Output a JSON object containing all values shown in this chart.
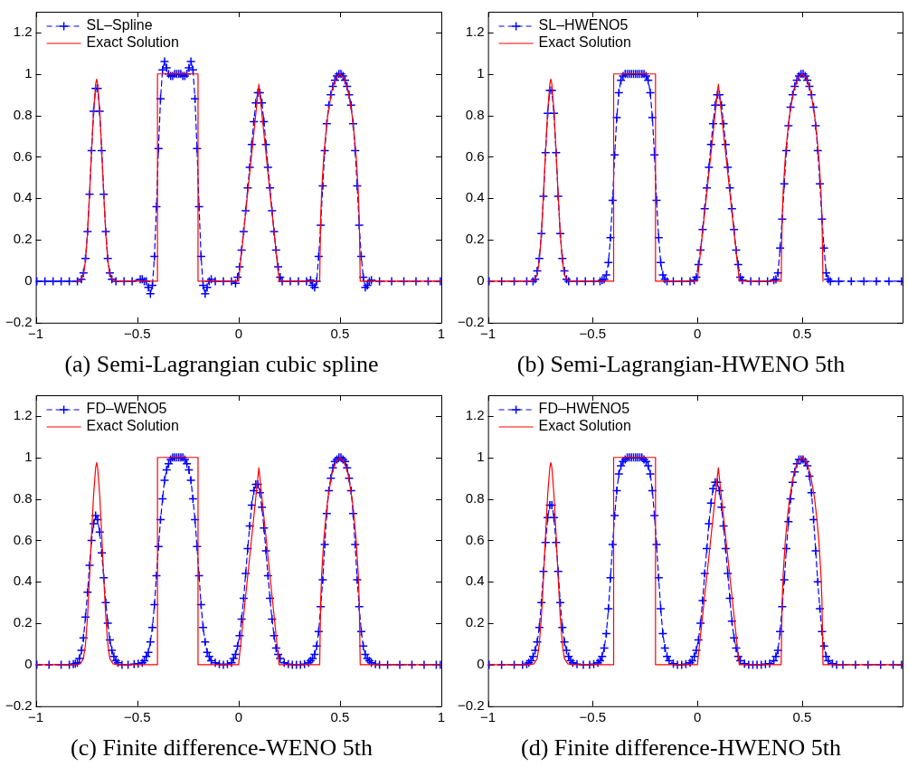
{
  "chart_data": [
    {
      "type": "line",
      "title": "(a) Semi-Lagrangian cubic spline",
      "xlim": [
        -1,
        1
      ],
      "xticks": [
        -1,
        -0.5,
        0,
        0.5,
        1
      ],
      "ylim": [
        -0.2,
        1.3
      ],
      "yticks": [
        -0.2,
        0,
        0.2,
        0.4,
        0.6,
        0.8,
        1,
        1.2
      ],
      "grid": false,
      "legend": "top left",
      "series": [
        {
          "name": "SL–Spline",
          "color": "#0000ff",
          "marker": "cross",
          "line_style": "dashed",
          "x": [
            -0.995,
            -0.955,
            -0.915,
            -0.875,
            -0.835,
            -0.795,
            -0.775,
            -0.765,
            -0.755,
            -0.745,
            -0.735,
            -0.725,
            -0.715,
            -0.705,
            -0.695,
            -0.685,
            -0.675,
            -0.665,
            -0.655,
            -0.645,
            -0.635,
            -0.625,
            -0.605,
            -0.565,
            -0.525,
            -0.485,
            -0.475,
            -0.465,
            -0.455,
            -0.445,
            -0.435,
            -0.425,
            -0.415,
            -0.405,
            -0.395,
            -0.385,
            -0.375,
            -0.365,
            -0.355,
            -0.345,
            -0.335,
            -0.325,
            -0.315,
            -0.305,
            -0.295,
            -0.285,
            -0.275,
            -0.265,
            -0.255,
            -0.245,
            -0.235,
            -0.225,
            -0.215,
            -0.205,
            -0.195,
            -0.185,
            -0.175,
            -0.165,
            -0.155,
            -0.145,
            -0.135,
            -0.115,
            -0.075,
            -0.035,
            -0.015,
            -0.005,
            0.005,
            0.015,
            0.025,
            0.035,
            0.045,
            0.055,
            0.065,
            0.075,
            0.085,
            0.095,
            0.105,
            0.115,
            0.125,
            0.135,
            0.145,
            0.155,
            0.165,
            0.175,
            0.185,
            0.195,
            0.205,
            0.215,
            0.255,
            0.295,
            0.335,
            0.355,
            0.365,
            0.375,
            0.385,
            0.395,
            0.405,
            0.415,
            0.425,
            0.435,
            0.445,
            0.455,
            0.465,
            0.475,
            0.485,
            0.495,
            0.505,
            0.515,
            0.525,
            0.535,
            0.545,
            0.555,
            0.565,
            0.575,
            0.585,
            0.595,
            0.605,
            0.615,
            0.625,
            0.635,
            0.645,
            0.655,
            0.695,
            0.755,
            0.815,
            0.875,
            0.935,
            0.995
          ],
          "values": [
            0,
            0,
            0,
            0,
            0,
            0,
            0.01,
            0.04,
            0.11,
            0.24,
            0.42,
            0.63,
            0.82,
            0.93,
            0.93,
            0.82,
            0.63,
            0.42,
            0.24,
            0.11,
            0.04,
            0.01,
            0,
            0,
            0,
            0.01,
            0.01,
            0,
            0,
            -0.03,
            -0.06,
            -0.02,
            0.12,
            0.36,
            0.64,
            0.88,
            1.02,
            1.06,
            1.03,
            1,
            0.99,
            0.99,
            1,
            1,
            1,
            1,
            0.99,
            0.99,
            1,
            1.03,
            1.06,
            1.02,
            0.88,
            0.64,
            0.36,
            0.12,
            -0.02,
            -0.06,
            -0.03,
            0,
            0.01,
            0,
            0,
            0,
            -0.01,
            0.02,
            0.07,
            0.15,
            0.24,
            0.34,
            0.45,
            0.55,
            0.66,
            0.77,
            0.86,
            0.91,
            0.91,
            0.86,
            0.77,
            0.66,
            0.55,
            0.45,
            0.34,
            0.24,
            0.15,
            0.07,
            0.02,
            0,
            0,
            0,
            0,
            0.005,
            -0.02,
            -0.03,
            0,
            0.12,
            0.27,
            0.46,
            0.63,
            0.76,
            0.85,
            0.9,
            0.94,
            0.97,
            0.99,
            1,
            1,
            0.99,
            0.97,
            0.94,
            0.9,
            0.85,
            0.76,
            0.63,
            0.46,
            0.27,
            0.12,
            0.02,
            -0.03,
            -0.02,
            0,
            0.005,
            0,
            0,
            0,
            0,
            0,
            0
          ]
        },
        {
          "name": "Exact Solution",
          "color": "#ff0000",
          "marker": "none",
          "line_style": "solid",
          "x": [
            -0.8,
            -0.78,
            -0.765,
            -0.755,
            -0.745,
            -0.735,
            -0.725,
            -0.715,
            -0.705,
            -0.7,
            -0.695,
            -0.685,
            -0.675,
            -0.665,
            -0.655,
            -0.645,
            -0.635,
            -0.62,
            -0.6,
            -0.4,
            -0.4,
            -0.2,
            -0.2,
            0,
            0.1,
            0.2,
            0.4,
            0.405,
            0.41,
            0.42,
            0.43,
            0.44,
            0.46,
            0.48,
            0.5,
            0.52,
            0.54,
            0.56,
            0.57,
            0.58,
            0.59,
            0.595,
            0.6,
            1
          ],
          "values": [
            0,
            0.005,
            0.03,
            0.1,
            0.23,
            0.42,
            0.63,
            0.82,
            0.95,
            0.975,
            0.95,
            0.82,
            0.63,
            0.42,
            0.23,
            0.1,
            0.03,
            0.005,
            0,
            0,
            1,
            1,
            0,
            0,
            0.95,
            0,
            0,
            0.31,
            0.44,
            0.6,
            0.71,
            0.8,
            0.92,
            0.98,
            1,
            0.98,
            0.92,
            0.8,
            0.71,
            0.6,
            0.44,
            0.31,
            0,
            0
          ]
        }
      ]
    },
    {
      "type": "line",
      "title": "(b) Semi-Lagrangian-HWENO 5th",
      "xlim": [
        -1,
        0.98
      ],
      "xticks": [
        -1,
        -0.5,
        0,
        0.5
      ],
      "ylim": [
        -0.2,
        1.3
      ],
      "yticks": [
        -0.2,
        0,
        0.2,
        0.4,
        0.6,
        0.8,
        1,
        1.2
      ],
      "grid": false,
      "legend": "top left",
      "series": [
        {
          "name": "SL–HWENO5",
          "color": "#0000ff",
          "marker": "cross",
          "line_style": "dashed",
          "x": [
            -0.995,
            -0.935,
            -0.875,
            -0.815,
            -0.785,
            -0.775,
            -0.765,
            -0.755,
            -0.745,
            -0.735,
            -0.725,
            -0.715,
            -0.705,
            -0.695,
            -0.685,
            -0.675,
            -0.665,
            -0.655,
            -0.645,
            -0.635,
            -0.625,
            -0.615,
            -0.575,
            -0.535,
            -0.495,
            -0.465,
            -0.455,
            -0.445,
            -0.435,
            -0.425,
            -0.415,
            -0.405,
            -0.395,
            -0.385,
            -0.375,
            -0.365,
            -0.355,
            -0.345,
            -0.335,
            -0.325,
            -0.315,
            -0.305,
            -0.295,
            -0.285,
            -0.275,
            -0.265,
            -0.255,
            -0.245,
            -0.235,
            -0.225,
            -0.215,
            -0.205,
            -0.195,
            -0.185,
            -0.175,
            -0.165,
            -0.155,
            -0.145,
            -0.115,
            -0.075,
            -0.035,
            -0.015,
            -0.005,
            0.005,
            0.015,
            0.025,
            0.035,
            0.045,
            0.055,
            0.065,
            0.075,
            0.085,
            0.095,
            0.105,
            0.115,
            0.125,
            0.135,
            0.145,
            0.155,
            0.165,
            0.175,
            0.185,
            0.195,
            0.205,
            0.215,
            0.255,
            0.295,
            0.335,
            0.365,
            0.375,
            0.385,
            0.395,
            0.405,
            0.415,
            0.425,
            0.435,
            0.445,
            0.455,
            0.465,
            0.475,
            0.485,
            0.495,
            0.505,
            0.515,
            0.525,
            0.535,
            0.545,
            0.555,
            0.565,
            0.575,
            0.585,
            0.595,
            0.605,
            0.615,
            0.625,
            0.635,
            0.675,
            0.735,
            0.795,
            0.855,
            0.915,
            0.975
          ],
          "values": [
            0,
            0,
            0,
            0,
            0,
            0.01,
            0.05,
            0.11,
            0.23,
            0.41,
            0.62,
            0.81,
            0.92,
            0.92,
            0.81,
            0.62,
            0.41,
            0.23,
            0.11,
            0.05,
            0.01,
            0,
            0,
            0,
            0,
            0,
            0.005,
            0.01,
            0.03,
            0.09,
            0.21,
            0.39,
            0.61,
            0.79,
            0.91,
            0.97,
            0.99,
            1,
            1,
            1,
            1,
            1,
            1,
            1,
            1,
            1,
            1,
            0.99,
            0.97,
            0.91,
            0.79,
            0.61,
            0.39,
            0.21,
            0.09,
            0.03,
            0.01,
            0,
            0,
            0,
            0,
            0.005,
            0.02,
            0.08,
            0.15,
            0.25,
            0.35,
            0.45,
            0.55,
            0.66,
            0.76,
            0.85,
            0.9,
            0.9,
            0.85,
            0.76,
            0.66,
            0.55,
            0.45,
            0.35,
            0.25,
            0.15,
            0.08,
            0.02,
            0.005,
            0,
            0,
            0,
            0.005,
            0.01,
            0.04,
            0.16,
            0.3,
            0.47,
            0.63,
            0.75,
            0.84,
            0.9,
            0.94,
            0.97,
            0.99,
            1,
            1,
            0.99,
            0.97,
            0.94,
            0.9,
            0.84,
            0.75,
            0.63,
            0.47,
            0.3,
            0.16,
            0.04,
            0.01,
            0,
            0,
            0,
            0,
            0,
            0,
            0
          ]
        },
        {
          "name": "Exact Solution",
          "color": "#ff0000",
          "marker": "none",
          "line_style": "solid",
          "x": [
            -1,
            -0.8,
            -0.78,
            -0.765,
            -0.755,
            -0.745,
            -0.735,
            -0.725,
            -0.715,
            -0.705,
            -0.7,
            -0.695,
            -0.685,
            -0.675,
            -0.665,
            -0.655,
            -0.645,
            -0.635,
            -0.62,
            -0.6,
            -0.4,
            -0.4,
            -0.2,
            -0.2,
            0,
            0.1,
            0.2,
            0.4,
            0.405,
            0.41,
            0.42,
            0.43,
            0.44,
            0.46,
            0.48,
            0.5,
            0.52,
            0.54,
            0.56,
            0.57,
            0.58,
            0.59,
            0.595,
            0.6
          ],
          "values": [
            0,
            0,
            0.005,
            0.03,
            0.1,
            0.23,
            0.42,
            0.63,
            0.82,
            0.95,
            0.975,
            0.95,
            0.82,
            0.63,
            0.42,
            0.23,
            0.1,
            0.03,
            0.005,
            0,
            0,
            1,
            1,
            0,
            0,
            0.95,
            0,
            0,
            0.31,
            0.44,
            0.6,
            0.71,
            0.8,
            0.92,
            0.98,
            1,
            0.98,
            0.92,
            0.8,
            0.71,
            0.6,
            0.44,
            0.31,
            0
          ]
        }
      ]
    },
    {
      "type": "line",
      "title": "(c) Finite difference-WENO 5th",
      "xlim": [
        -1,
        1
      ],
      "xticks": [
        -1,
        -0.5,
        0,
        0.5,
        1
      ],
      "ylim": [
        -0.2,
        1.3
      ],
      "yticks": [
        -0.2,
        0,
        0.2,
        0.4,
        0.6,
        0.8,
        1,
        1.2
      ],
      "grid": false,
      "legend": "top left",
      "series": [
        {
          "name": "FD–WENO5",
          "color": "#0000ff",
          "marker": "cross",
          "line_style": "dashed",
          "x": [
            -0.995,
            -0.935,
            -0.875,
            -0.835,
            -0.815,
            -0.805,
            -0.795,
            -0.785,
            -0.775,
            -0.765,
            -0.755,
            -0.745,
            -0.735,
            -0.725,
            -0.715,
            -0.705,
            -0.695,
            -0.685,
            -0.675,
            -0.665,
            -0.655,
            -0.645,
            -0.635,
            -0.625,
            -0.615,
            -0.605,
            -0.595,
            -0.575,
            -0.545,
            -0.515,
            -0.495,
            -0.475,
            -0.465,
            -0.455,
            -0.445,
            -0.435,
            -0.425,
            -0.415,
            -0.405,
            -0.395,
            -0.385,
            -0.375,
            -0.365,
            -0.355,
            -0.345,
            -0.335,
            -0.325,
            -0.315,
            -0.305,
            -0.295,
            -0.285,
            -0.275,
            -0.265,
            -0.255,
            -0.245,
            -0.235,
            -0.225,
            -0.215,
            -0.205,
            -0.195,
            -0.185,
            -0.175,
            -0.165,
            -0.155,
            -0.145,
            -0.135,
            -0.115,
            -0.095,
            -0.075,
            -0.055,
            -0.035,
            -0.025,
            -0.015,
            -0.005,
            0.005,
            0.015,
            0.025,
            0.035,
            0.045,
            0.055,
            0.065,
            0.075,
            0.085,
            0.095,
            0.105,
            0.115,
            0.125,
            0.135,
            0.145,
            0.155,
            0.165,
            0.175,
            0.185,
            0.195,
            0.205,
            0.225,
            0.245,
            0.265,
            0.285,
            0.305,
            0.325,
            0.345,
            0.355,
            0.365,
            0.375,
            0.385,
            0.395,
            0.405,
            0.415,
            0.425,
            0.435,
            0.445,
            0.455,
            0.465,
            0.475,
            0.485,
            0.495,
            0.505,
            0.515,
            0.525,
            0.535,
            0.545,
            0.555,
            0.565,
            0.575,
            0.585,
            0.595,
            0.605,
            0.615,
            0.625,
            0.635,
            0.645,
            0.655,
            0.675,
            0.695,
            0.735,
            0.795,
            0.855,
            0.915,
            0.975,
            0.995
          ],
          "values": [
            0,
            0,
            0,
            0,
            0.003,
            0.005,
            0.01,
            0.03,
            0.07,
            0.13,
            0.23,
            0.35,
            0.48,
            0.6,
            0.68,
            0.72,
            0.7,
            0.64,
            0.54,
            0.42,
            0.3,
            0.2,
            0.12,
            0.07,
            0.04,
            0.02,
            0.01,
            0,
            0,
            0.003,
            0.005,
            0.01,
            0.02,
            0.04,
            0.06,
            0.11,
            0.18,
            0.29,
            0.43,
            0.57,
            0.7,
            0.8,
            0.89,
            0.94,
            0.97,
            0.99,
            1,
            1,
            1,
            1,
            1,
            1,
            0.99,
            0.97,
            0.94,
            0.89,
            0.8,
            0.7,
            0.57,
            0.43,
            0.29,
            0.18,
            0.11,
            0.06,
            0.04,
            0.02,
            0.01,
            0.003,
            0,
            0.003,
            0.01,
            0.03,
            0.05,
            0.09,
            0.14,
            0.22,
            0.32,
            0.44,
            0.56,
            0.67,
            0.77,
            0.84,
            0.87,
            0.87,
            0.83,
            0.76,
            0.66,
            0.55,
            0.43,
            0.32,
            0.22,
            0.14,
            0.08,
            0.05,
            0.03,
            0.01,
            0.003,
            0,
            0,
            0,
            0.003,
            0.01,
            0.02,
            0.03,
            0.05,
            0.09,
            0.16,
            0.28,
            0.41,
            0.58,
            0.73,
            0.84,
            0.9,
            0.95,
            0.98,
            0.99,
            1,
            1,
            0.99,
            0.98,
            0.95,
            0.9,
            0.84,
            0.73,
            0.58,
            0.41,
            0.28,
            0.16,
            0.09,
            0.05,
            0.03,
            0.02,
            0.01,
            0.003,
            0,
            0,
            0,
            0,
            0,
            0,
            0
          ]
        },
        {
          "name": "Exact Solution",
          "color": "#ff0000",
          "marker": "none",
          "line_style": "solid",
          "x": [
            -1,
            -0.8,
            -0.78,
            -0.765,
            -0.755,
            -0.745,
            -0.735,
            -0.725,
            -0.715,
            -0.705,
            -0.7,
            -0.695,
            -0.685,
            -0.675,
            -0.665,
            -0.655,
            -0.645,
            -0.635,
            -0.62,
            -0.6,
            -0.4,
            -0.4,
            -0.2,
            -0.2,
            0,
            0.1,
            0.2,
            0.4,
            0.405,
            0.41,
            0.42,
            0.43,
            0.44,
            0.46,
            0.48,
            0.5,
            0.52,
            0.54,
            0.56,
            0.57,
            0.58,
            0.59,
            0.595,
            0.6,
            1
          ],
          "values": [
            0,
            0,
            0.005,
            0.03,
            0.1,
            0.23,
            0.42,
            0.63,
            0.82,
            0.95,
            0.975,
            0.95,
            0.82,
            0.63,
            0.42,
            0.23,
            0.1,
            0.03,
            0.005,
            0,
            0,
            1,
            1,
            0,
            0,
            0.95,
            0,
            0,
            0.31,
            0.44,
            0.6,
            0.71,
            0.8,
            0.92,
            0.98,
            1,
            0.98,
            0.92,
            0.8,
            0.71,
            0.6,
            0.44,
            0.31,
            0,
            0
          ]
        }
      ]
    },
    {
      "type": "line",
      "title": "(d) Finite difference-HWENO 5th",
      "xlim": [
        -1,
        0.98
      ],
      "xticks": [
        -1,
        -0.5,
        0,
        0.5
      ],
      "ylim": [
        -0.2,
        1.3
      ],
      "yticks": [
        -0.2,
        0,
        0.2,
        0.4,
        0.6,
        0.8,
        1,
        1.2
      ],
      "grid": false,
      "legend": "top left",
      "series": [
        {
          "name": "FD–HWENO5",
          "color": "#0000ff",
          "marker": "cross",
          "line_style": "dashed",
          "x": [
            -0.995,
            -0.935,
            -0.875,
            -0.835,
            -0.815,
            -0.805,
            -0.795,
            -0.785,
            -0.775,
            -0.765,
            -0.755,
            -0.745,
            -0.735,
            -0.725,
            -0.715,
            -0.705,
            -0.695,
            -0.685,
            -0.675,
            -0.665,
            -0.655,
            -0.645,
            -0.635,
            -0.625,
            -0.615,
            -0.605,
            -0.595,
            -0.575,
            -0.545,
            -0.515,
            -0.495,
            -0.475,
            -0.465,
            -0.455,
            -0.445,
            -0.435,
            -0.425,
            -0.415,
            -0.405,
            -0.395,
            -0.385,
            -0.375,
            -0.365,
            -0.355,
            -0.345,
            -0.335,
            -0.325,
            -0.315,
            -0.305,
            -0.295,
            -0.285,
            -0.275,
            -0.265,
            -0.255,
            -0.245,
            -0.235,
            -0.225,
            -0.215,
            -0.205,
            -0.195,
            -0.185,
            -0.175,
            -0.165,
            -0.155,
            -0.145,
            -0.135,
            -0.115,
            -0.095,
            -0.075,
            -0.055,
            -0.035,
            -0.025,
            -0.015,
            -0.005,
            0.005,
            0.015,
            0.025,
            0.035,
            0.045,
            0.055,
            0.065,
            0.075,
            0.085,
            0.095,
            0.105,
            0.115,
            0.125,
            0.135,
            0.145,
            0.155,
            0.165,
            0.175,
            0.185,
            0.195,
            0.205,
            0.225,
            0.245,
            0.265,
            0.285,
            0.305,
            0.325,
            0.345,
            0.365,
            0.375,
            0.385,
            0.395,
            0.405,
            0.415,
            0.425,
            0.435,
            0.445,
            0.455,
            0.465,
            0.475,
            0.485,
            0.495,
            0.505,
            0.515,
            0.525,
            0.535,
            0.545,
            0.555,
            0.565,
            0.575,
            0.585,
            0.595,
            0.605,
            0.615,
            0.625,
            0.645,
            0.665,
            0.695,
            0.755,
            0.815,
            0.875,
            0.935,
            0.975
          ],
          "values": [
            0,
            0,
            0,
            0,
            0.003,
            0.01,
            0.02,
            0.04,
            0.07,
            0.11,
            0.18,
            0.3,
            0.45,
            0.59,
            0.71,
            0.77,
            0.77,
            0.71,
            0.59,
            0.45,
            0.3,
            0.18,
            0.11,
            0.07,
            0.04,
            0.02,
            0.01,
            0.003,
            0,
            0,
            0.003,
            0.01,
            0.02,
            0.04,
            0.08,
            0.15,
            0.27,
            0.42,
            0.58,
            0.72,
            0.84,
            0.92,
            0.96,
            0.98,
            0.99,
            1,
            1,
            1,
            1,
            1,
            1,
            1,
            1,
            0.99,
            0.98,
            0.96,
            0.92,
            0.84,
            0.72,
            0.58,
            0.42,
            0.27,
            0.15,
            0.08,
            0.04,
            0.02,
            0.005,
            0,
            0,
            0.003,
            0.01,
            0.02,
            0.04,
            0.07,
            0.12,
            0.2,
            0.31,
            0.44,
            0.56,
            0.68,
            0.78,
            0.85,
            0.88,
            0.88,
            0.84,
            0.76,
            0.67,
            0.56,
            0.44,
            0.32,
            0.21,
            0.13,
            0.08,
            0.04,
            0.02,
            0.005,
            0,
            0,
            0,
            0,
            0.003,
            0.005,
            0.02,
            0.04,
            0.07,
            0.16,
            0.28,
            0.41,
            0.56,
            0.69,
            0.8,
            0.88,
            0.93,
            0.97,
            0.99,
            0.99,
            0.99,
            0.98,
            0.96,
            0.91,
            0.83,
            0.7,
            0.55,
            0.4,
            0.27,
            0.16,
            0.09,
            0.04,
            0.02,
            0.005,
            0,
            0,
            0,
            0,
            0,
            0,
            0
          ]
        },
        {
          "name": "Exact Solution",
          "color": "#ff0000",
          "marker": "none",
          "line_style": "solid",
          "x": [
            -1,
            -0.8,
            -0.78,
            -0.765,
            -0.755,
            -0.745,
            -0.735,
            -0.725,
            -0.715,
            -0.705,
            -0.7,
            -0.695,
            -0.685,
            -0.675,
            -0.665,
            -0.655,
            -0.645,
            -0.635,
            -0.62,
            -0.6,
            -0.4,
            -0.4,
            -0.2,
            -0.2,
            0,
            0.1,
            0.2,
            0.4,
            0.405,
            0.41,
            0.42,
            0.43,
            0.44,
            0.46,
            0.48,
            0.5,
            0.52,
            0.54,
            0.56,
            0.57,
            0.58,
            0.59,
            0.595,
            0.6,
            0.98
          ],
          "values": [
            0,
            0,
            0.005,
            0.03,
            0.1,
            0.23,
            0.42,
            0.63,
            0.82,
            0.95,
            0.975,
            0.95,
            0.82,
            0.63,
            0.42,
            0.23,
            0.1,
            0.03,
            0.005,
            0,
            0,
            1,
            1,
            0,
            0,
            0.95,
            0,
            0,
            0.31,
            0.44,
            0.6,
            0.71,
            0.8,
            0.92,
            0.98,
            1,
            0.98,
            0.92,
            0.8,
            0.71,
            0.6,
            0.44,
            0.31,
            0,
            0
          ]
        }
      ]
    }
  ]
}
